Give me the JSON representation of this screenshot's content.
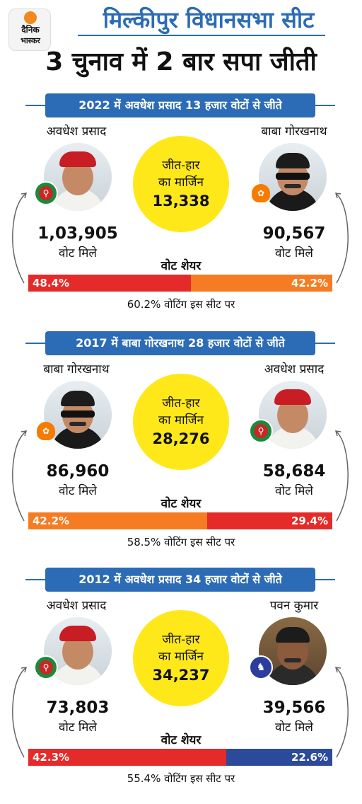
{
  "header": {
    "logo": {
      "line1": "दैनिक",
      "line2": "भास्कर"
    },
    "title": "मिल्कीपुर विधानसभा सीट",
    "subtitle": "3 चुनाव में 2 बार सपा जीती"
  },
  "common": {
    "margin_line1": "जीत-हार",
    "margin_line2": "का मार्जिन",
    "votes_label": "वोट मिले",
    "share_label": "वोट शेयर"
  },
  "colors": {
    "sp": "#e52a2a",
    "bjp": "#f57c22",
    "bsp": "#2c4a9c",
    "accent": "#2c6bb5",
    "margin_circle": "#ffe81a"
  },
  "sections": [
    {
      "banner": "2022 में अवधेश प्रसाद 13 हजार वोटों से जीते",
      "margin": "13,338",
      "left": {
        "name": "अवधेश प्रसाद",
        "party": "sp-symbol-icon",
        "votes": "1,03,905",
        "share": "48.4%",
        "share_value": 48.4
      },
      "right": {
        "name": "बाबा गोरखनाथ",
        "party": "bjp-symbol-icon",
        "votes": "90,567",
        "share": "42.2%",
        "share_value": 42.2
      },
      "turnout": "60.2% वोटिंग इस सीट पर"
    },
    {
      "banner": "2017 में बाबा गोरखनाथ 28 हजार वोटों से जीते",
      "margin": "28,276",
      "left": {
        "name": "बाबा गोरखनाथ",
        "party": "bjp-symbol-icon",
        "votes": "86,960",
        "share": "42.2%",
        "share_value": 42.2
      },
      "right": {
        "name": "अवधेश प्रसाद",
        "party": "sp-symbol-icon",
        "votes": "58,684",
        "share": "29.4%",
        "share_value": 29.4
      },
      "turnout": "58.5% वोटिंग इस सीट पर"
    },
    {
      "banner": "2012 में अवधेश प्रसाद 34 हजार वोटों से जीते",
      "margin": "34,237",
      "left": {
        "name": "अवधेश प्रसाद",
        "party": "sp-symbol-icon",
        "votes": "73,803",
        "share": "42.3%",
        "share_value": 42.3
      },
      "right": {
        "name": "पवन कुमार",
        "party": "bsp-symbol-icon",
        "votes": "39,566",
        "share": "22.6%",
        "share_value": 22.6
      },
      "turnout": "55.4% वोटिंग इस सीट पर"
    }
  ]
}
